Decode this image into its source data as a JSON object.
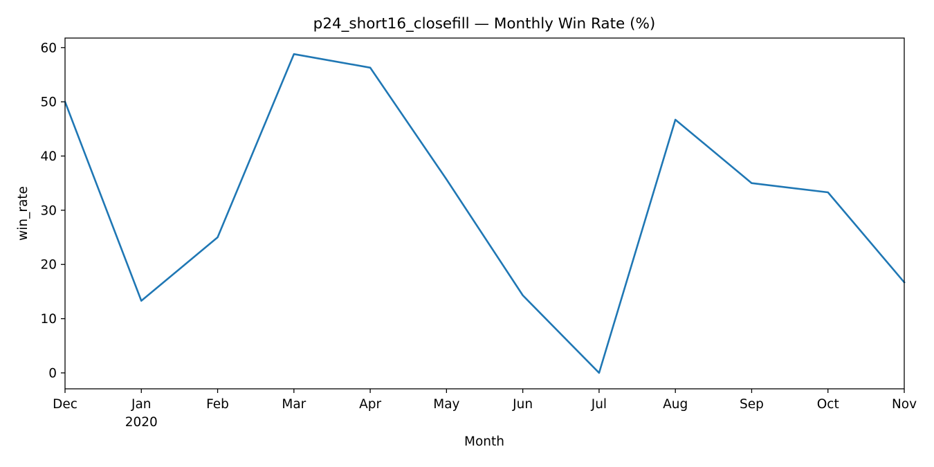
{
  "chart_data": {
    "type": "line",
    "title": "p24_short16_closefill — Monthly Win Rate (%)",
    "xlabel": "Month",
    "ylabel": "win_rate",
    "x": [
      "2019-12",
      "2020-01",
      "2020-02",
      "2020-03",
      "2020-04",
      "2020-05",
      "2020-06",
      "2020-07",
      "2020-08",
      "2020-09",
      "2020-10",
      "2020-11"
    ],
    "x_tick_labels": [
      "Dec",
      "Jan",
      "Feb",
      "Mar",
      "Apr",
      "May",
      "Jun",
      "Jul",
      "Aug",
      "Sep",
      "Oct",
      "Nov"
    ],
    "x_tick_sublabels": [
      "",
      "2020",
      "",
      "",
      "",
      "",
      "",
      "",
      "",
      "",
      "",
      ""
    ],
    "series": [
      {
        "values": [
          50.0,
          13.3,
          25.0,
          58.8,
          56.3,
          35.7,
          14.3,
          0.0,
          46.7,
          35.0,
          33.3,
          16.7
        ],
        "color": "#1f77b4"
      }
    ],
    "ylim": [
      -2.94,
      61.76
    ],
    "yticks": [
      0,
      10,
      20,
      30,
      40,
      50,
      60
    ],
    "grid": false,
    "legend": "none"
  }
}
